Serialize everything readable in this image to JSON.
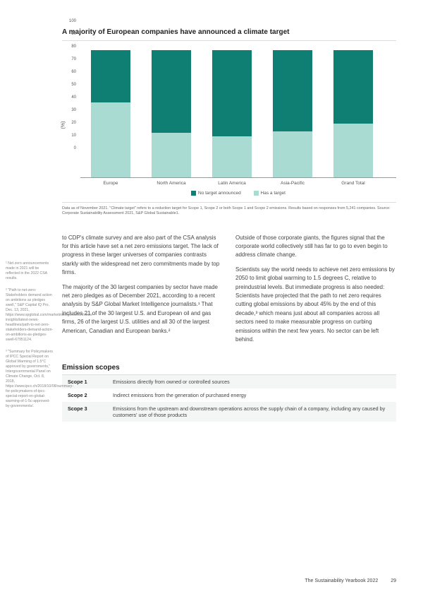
{
  "chart": {
    "title": "A majority of European companies have announced a climate target",
    "type": "stacked-bar",
    "y_axis_label": "(%)",
    "ylim": [
      0,
      100
    ],
    "ytick_step": 10,
    "categories": [
      "Europe",
      "North America",
      "Latin America",
      "Asia-Pacific",
      "Grand Total"
    ],
    "series": {
      "no_target": {
        "label": "No target announced",
        "color": "#0f7f74",
        "values": [
          41,
          65,
          68,
          64,
          58
        ]
      },
      "has_target": {
        "label": "Has a target",
        "color": "#aadbd3",
        "values": [
          59,
          35,
          32,
          36,
          42
        ]
      }
    },
    "bar_total": 100,
    "background_color": "#ffffff",
    "axis_color": "#999999",
    "label_fontsize": 7,
    "caption": "Data as of November 2021. \"Climate target\" refers to a reduction target for Scope 1, Scope 2 or both Scope 1 and Scope 2 emissions. Results based on responses from 5,241 companies. Source: Corporate Sustainability Assessment 2021, S&P Global Sustainable1."
  },
  "body": {
    "left": [
      "to CDP's climate survey and are also part of the CSA analysis for this article have set a net zero emissions target. The lack of progress in these larger universes of companies contrasts starkly with the widespread net zero commitments made by top firms.",
      "The majority of the 30 largest companies by sector have made net zero pledges as of December 2021, according to a recent analysis by S&P Global Market Intelligence journalists.¹ That includes 21 of the 30 largest U.S. and European oil and gas firms, 26 of the largest U.S. utilities and all 30 of the largest American, Canadian and European banks.²"
    ],
    "right": [
      "Outside of those corporate giants, the figures signal that the corporate world collectively still has far to go to even begin to address climate change.",
      "Scientists say the world needs to achieve net zero emissions by 2050 to limit global warming to 1.5 degrees C, relative to preindustrial levels. But immediate progress is also needed: Scientists have projected that the path to net zero requires cutting global emissions by about 45% by the end of this decade,³ which means just about all companies across all sectors need to make measurable progress on curbing emissions within the next few years. No sector can be left behind."
    ]
  },
  "footnotes": [
    "¹ Net zero announcements made in 2021 will be reflected in the 2022 CSA results.",
    "² \"Path to net-zero: Stakeholders demand action on ambitions as pledges swell,\" S&P Capital IQ Pro, Dec. 13, 2021, https://www.spglobal.com/marketintelligence/en/news-insights/latest-news-headlines/path-to-net-zero-stakeholders-demand-action-on-ambitions-as-pledges-swell-67951124.",
    "³ \"Summary for Policymakers of IPCC Special Report on Global Warming of 1.5°C approved by governments,\" Intergovernmental Panel on Climate Change, Oct. 8, 2018, https://www.ipcc.ch/2018/10/08/summary-for-policymakers-of-ipcc-special-report-on-global-warming-of-1-5c-approved-by-governments/."
  ],
  "scopes": {
    "title": "Emission scopes",
    "rows": [
      {
        "label": "Scope 1",
        "desc": "Emissions directly from owned or controlled sources"
      },
      {
        "label": "Scope 2",
        "desc": "Indirect emissions from the generation of purchased energy"
      },
      {
        "label": "Scope 3",
        "desc": "Emissions from the upstream and downstream operations across the supply chain of a company, including any caused by customers' use of those products"
      }
    ]
  },
  "footer": {
    "book": "The Sustainability Yearbook 2022",
    "page": "29"
  }
}
